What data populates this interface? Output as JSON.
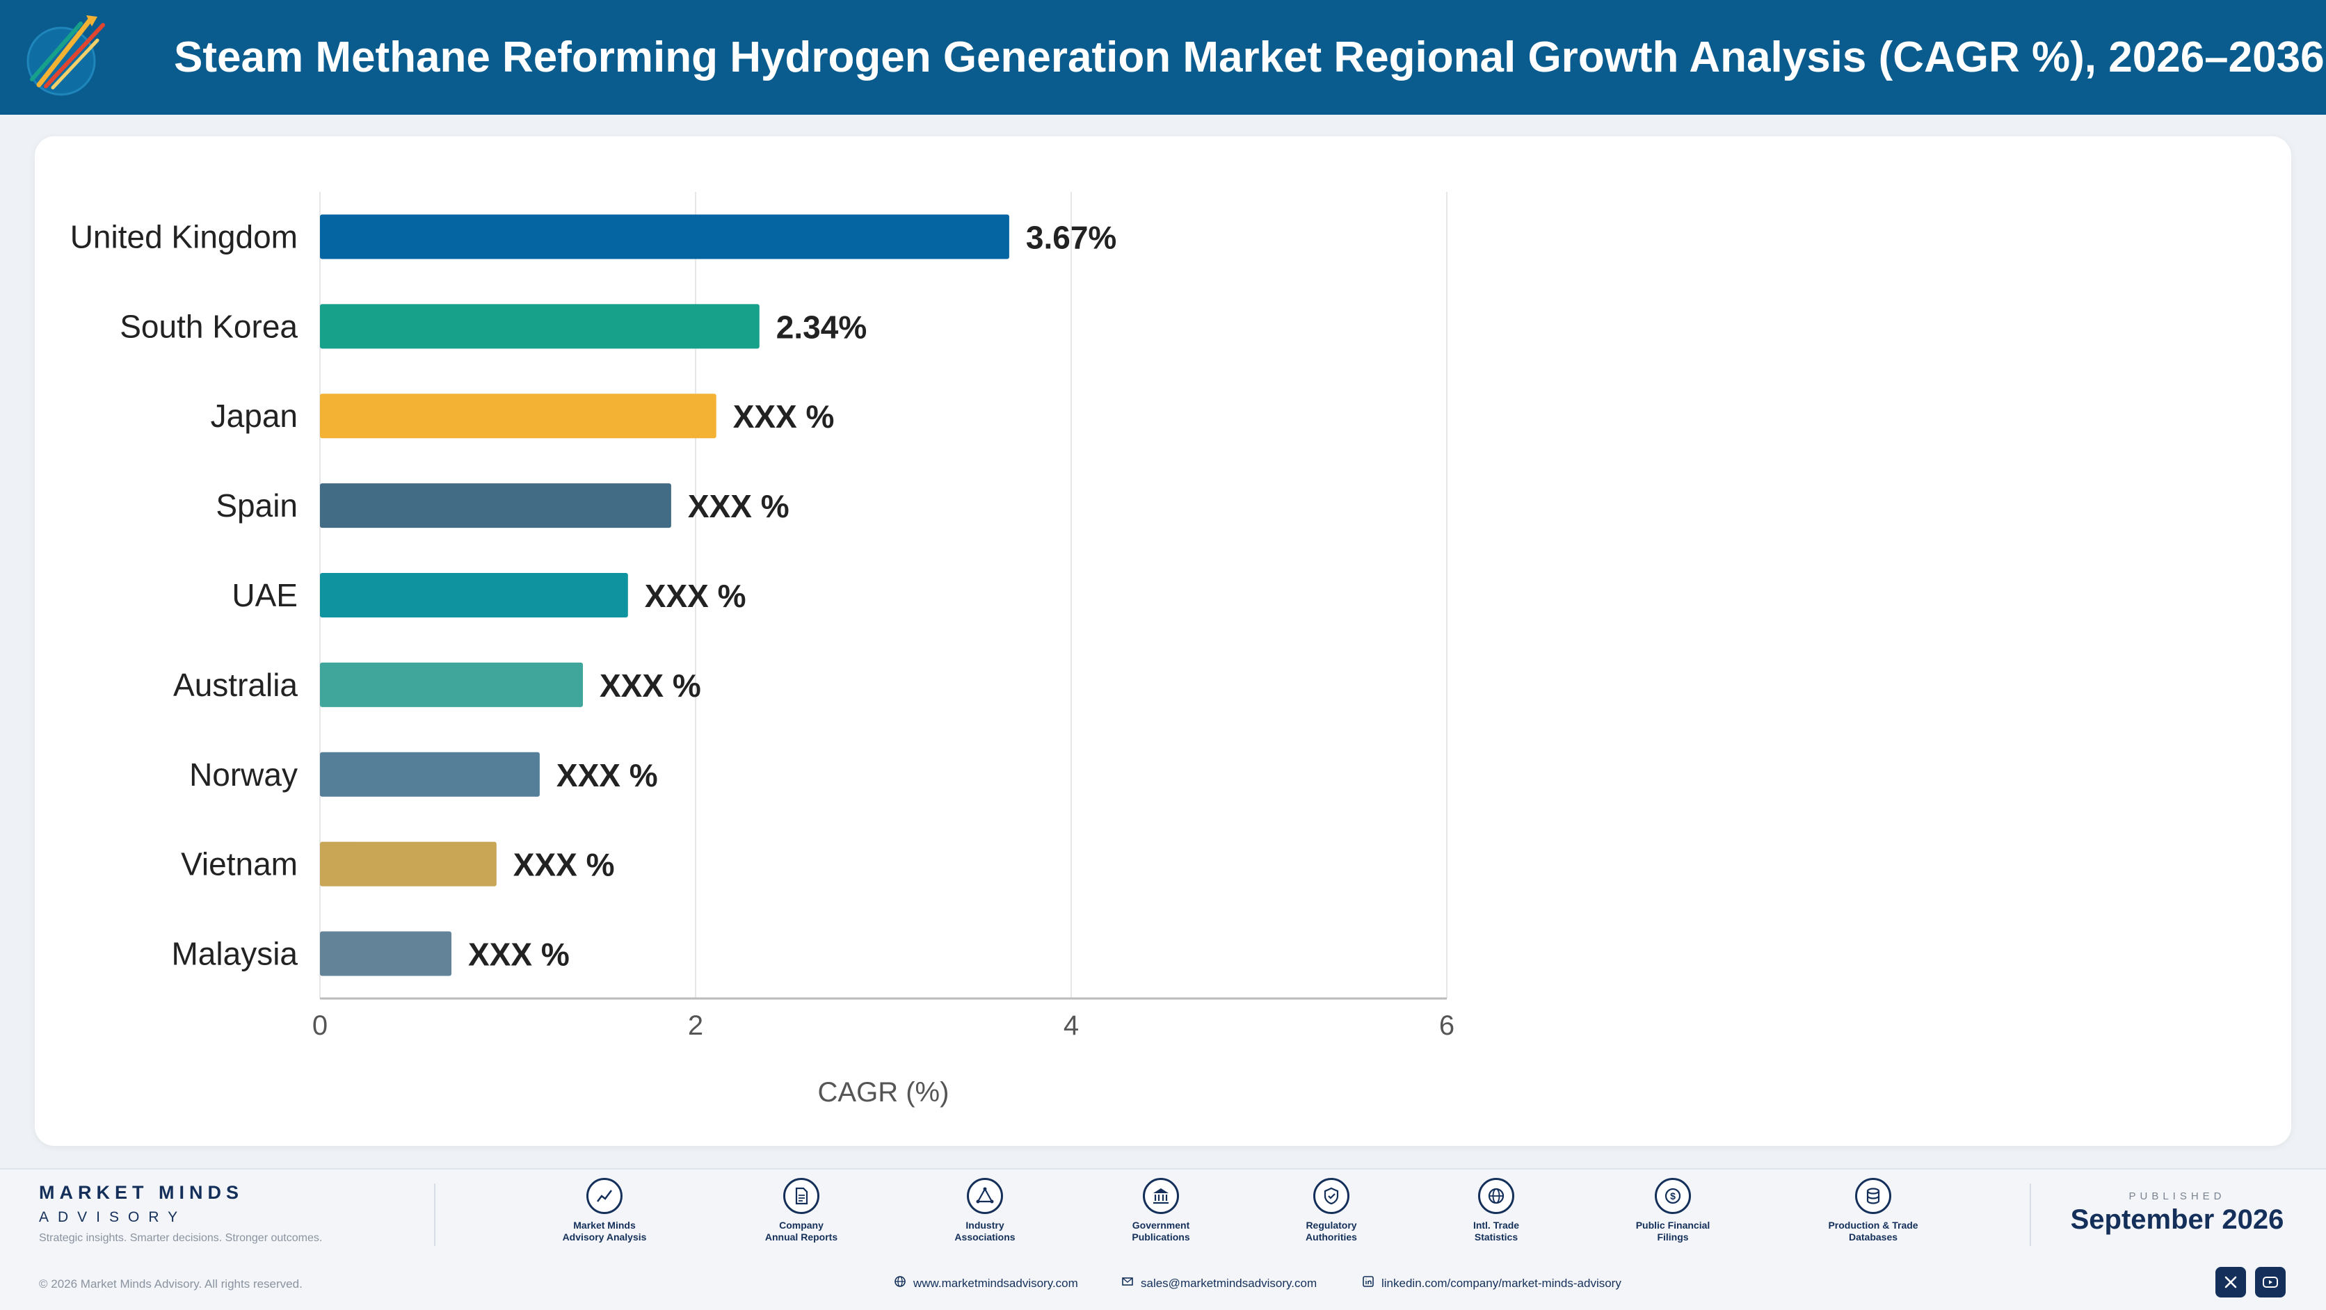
{
  "header": {
    "title": "Steam Methane Reforming Hydrogen Generation Market Regional Growth Analysis (CAGR %), 2026–2036"
  },
  "colors": {
    "header_bg": "#0a5c8e",
    "axis_text": "#555555",
    "label_text": "#222222"
  },
  "chart_data": {
    "type": "bar",
    "orientation": "horizontal",
    "categories": [
      "United Kingdom",
      "South Korea",
      "Japan",
      "Spain",
      "UAE",
      "Australia",
      "Norway",
      "Vietnam",
      "Malaysia"
    ],
    "values": [
      3.67,
      2.34,
      2.11,
      1.87,
      1.64,
      1.4,
      1.17,
      0.94,
      0.7
    ],
    "value_labels": [
      "3.67%",
      "2.34%",
      "XXX %",
      "XXX %",
      "XXX %",
      "XXX %",
      "XXX %",
      "XXX %",
      "XXX %"
    ],
    "colors": [
      "#0565a3",
      "#17a08a",
      "#f3b233",
      "#426c86",
      "#0f949f",
      "#40a69b",
      "#557f98",
      "#c9a556",
      "#638399"
    ],
    "xlabel": "CAGR (%)",
    "xlim": [
      0,
      6
    ],
    "xticks": [
      "0",
      "2",
      "4",
      "6"
    ],
    "grid": true
  },
  "footer": {
    "brand_name": "MARKET MINDS",
    "brand_sub": "ADVISORY",
    "brand_tagline": "Strategic insights. Smarter decisions. Stronger outcomes.",
    "sources": [
      {
        "label": "Market Minds\nAdvisory Analysis",
        "icon": "chart-line-icon"
      },
      {
        "label": "Company\nAnnual Reports",
        "icon": "document-icon"
      },
      {
        "label": "Industry\nAssociations",
        "icon": "network-icon"
      },
      {
        "label": "Government\nPublications",
        "icon": "government-building-icon"
      },
      {
        "label": "Regulatory\nAuthorities",
        "icon": "shield-icon"
      },
      {
        "label": "Intl. Trade\nStatistics",
        "icon": "globe-icon"
      },
      {
        "label": "Public Financial\nFilings",
        "icon": "dollar-coin-icon"
      },
      {
        "label": "Production & Trade\nDatabases",
        "icon": "database-icon"
      }
    ],
    "published_label": "PUBLISHED",
    "published_date": "September 2026",
    "copyright": "© 2026 Market Minds Advisory. All rights reserved.",
    "website": "www.marketmindsadvisory.com",
    "email": "sales@marketmindsadvisory.com",
    "linkedin": "linkedin.com/company/market-minds-advisory"
  }
}
